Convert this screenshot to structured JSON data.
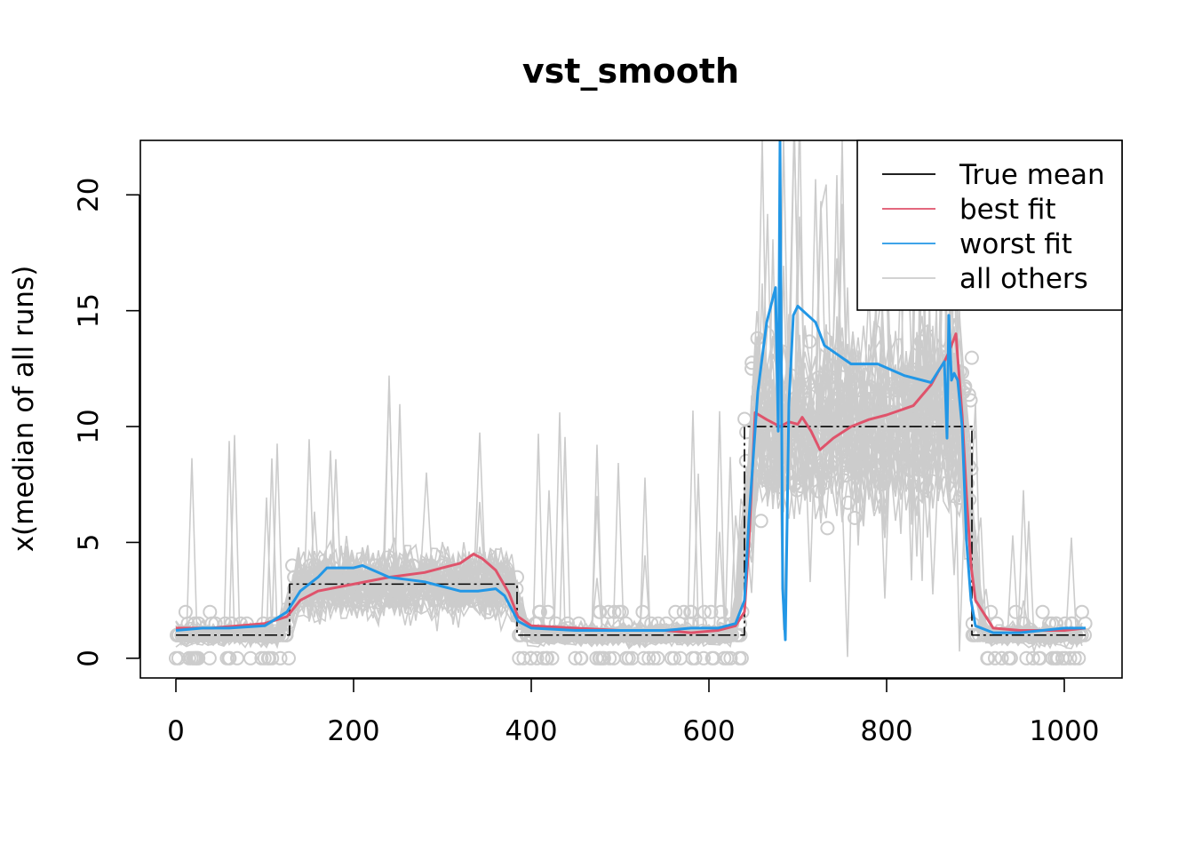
{
  "chart_data": {
    "type": "line",
    "title": "vst_smooth",
    "xlabel": "",
    "ylabel": "x(median of all runs)",
    "xlim": [
      -40,
      1065
    ],
    "ylim": [
      -0.85,
      22.35
    ],
    "x_ticks": [
      0,
      200,
      400,
      600,
      800,
      1000
    ],
    "y_ticks": [
      0,
      5,
      10,
      15,
      20
    ],
    "legend": {
      "position": "top-right",
      "entries": [
        {
          "label": "True mean",
          "color": "#000000"
        },
        {
          "label": "best fit",
          "color": "#DF536B"
        },
        {
          "label": "worst fit",
          "color": "#2297E6"
        },
        {
          "label": "all others",
          "color": "#CCCCCC"
        }
      ]
    },
    "true_mean": {
      "segments": [
        {
          "x": [
            0,
            128
          ],
          "y": 1
        },
        {
          "x": [
            128,
            384
          ],
          "y": 3.2
        },
        {
          "x": [
            384,
            640
          ],
          "y": 1
        },
        {
          "x": [
            640,
            896
          ],
          "y": 10
        },
        {
          "x": [
            896,
            1024
          ],
          "y": 1
        }
      ]
    },
    "series": [
      {
        "name": "best fit",
        "color": "#DF536B",
        "x": [
          0,
          40,
          100,
          125,
          140,
          160,
          200,
          240,
          280,
          300,
          320,
          335,
          345,
          360,
          375,
          385,
          400,
          450,
          500,
          550,
          580,
          610,
          630,
          640,
          645,
          652,
          665,
          680,
          690,
          700,
          705,
          715,
          725,
          740,
          760,
          780,
          800,
          830,
          850,
          860,
          865,
          870,
          878,
          885,
          890,
          895,
          900,
          920,
          950,
          1000,
          1024
        ],
        "values": [
          1.3,
          1.3,
          1.5,
          1.8,
          2.5,
          2.9,
          3.2,
          3.5,
          3.7,
          3.9,
          4.1,
          4.5,
          4.3,
          3.8,
          2.8,
          1.8,
          1.4,
          1.3,
          1.2,
          1.2,
          1.1,
          1.2,
          1.4,
          2.0,
          5.0,
          10.6,
          10.3,
          10.0,
          10.2,
          10.1,
          10.4,
          9.8,
          9.0,
          9.5,
          10.0,
          10.3,
          10.5,
          10.9,
          11.8,
          12.5,
          12.8,
          13.2,
          14.0,
          10.5,
          7.0,
          4.0,
          2.5,
          1.3,
          1.2,
          1.2,
          1.3
        ]
      },
      {
        "name": "worst fit",
        "color": "#2297E6",
        "x": [
          0,
          30,
          60,
          100,
          125,
          140,
          160,
          170,
          200,
          210,
          240,
          280,
          300,
          320,
          340,
          360,
          370,
          385,
          400,
          450,
          500,
          550,
          580,
          610,
          630,
          640,
          645,
          655,
          665,
          675,
          678,
          680,
          683,
          686,
          690,
          695,
          700,
          720,
          730,
          760,
          790,
          820,
          850,
          865,
          868,
          870,
          873,
          876,
          880,
          885,
          890,
          895,
          900,
          920,
          950,
          1000,
          1024
        ],
        "values": [
          1.2,
          1.3,
          1.3,
          1.4,
          2.0,
          2.9,
          3.5,
          3.9,
          3.9,
          4.0,
          3.5,
          3.3,
          3.1,
          2.9,
          2.9,
          3.0,
          2.7,
          1.6,
          1.3,
          1.2,
          1.2,
          1.2,
          1.3,
          1.3,
          1.5,
          2.5,
          6.0,
          11.5,
          14.5,
          16.0,
          9.8,
          22.3,
          3.0,
          0.8,
          11.0,
          14.8,
          15.2,
          14.5,
          13.5,
          12.7,
          12.7,
          12.2,
          11.9,
          12.8,
          9.5,
          14.8,
          12.0,
          12.3,
          12.0,
          10.0,
          5.0,
          2.5,
          1.4,
          1.1,
          1.1,
          1.3,
          1.3
        ]
      }
    ],
    "others_envelope": {
      "name": "all others",
      "color": "#CCCCCC",
      "note": "many gray runs and scattered open-circle points around the true mean"
    }
  }
}
